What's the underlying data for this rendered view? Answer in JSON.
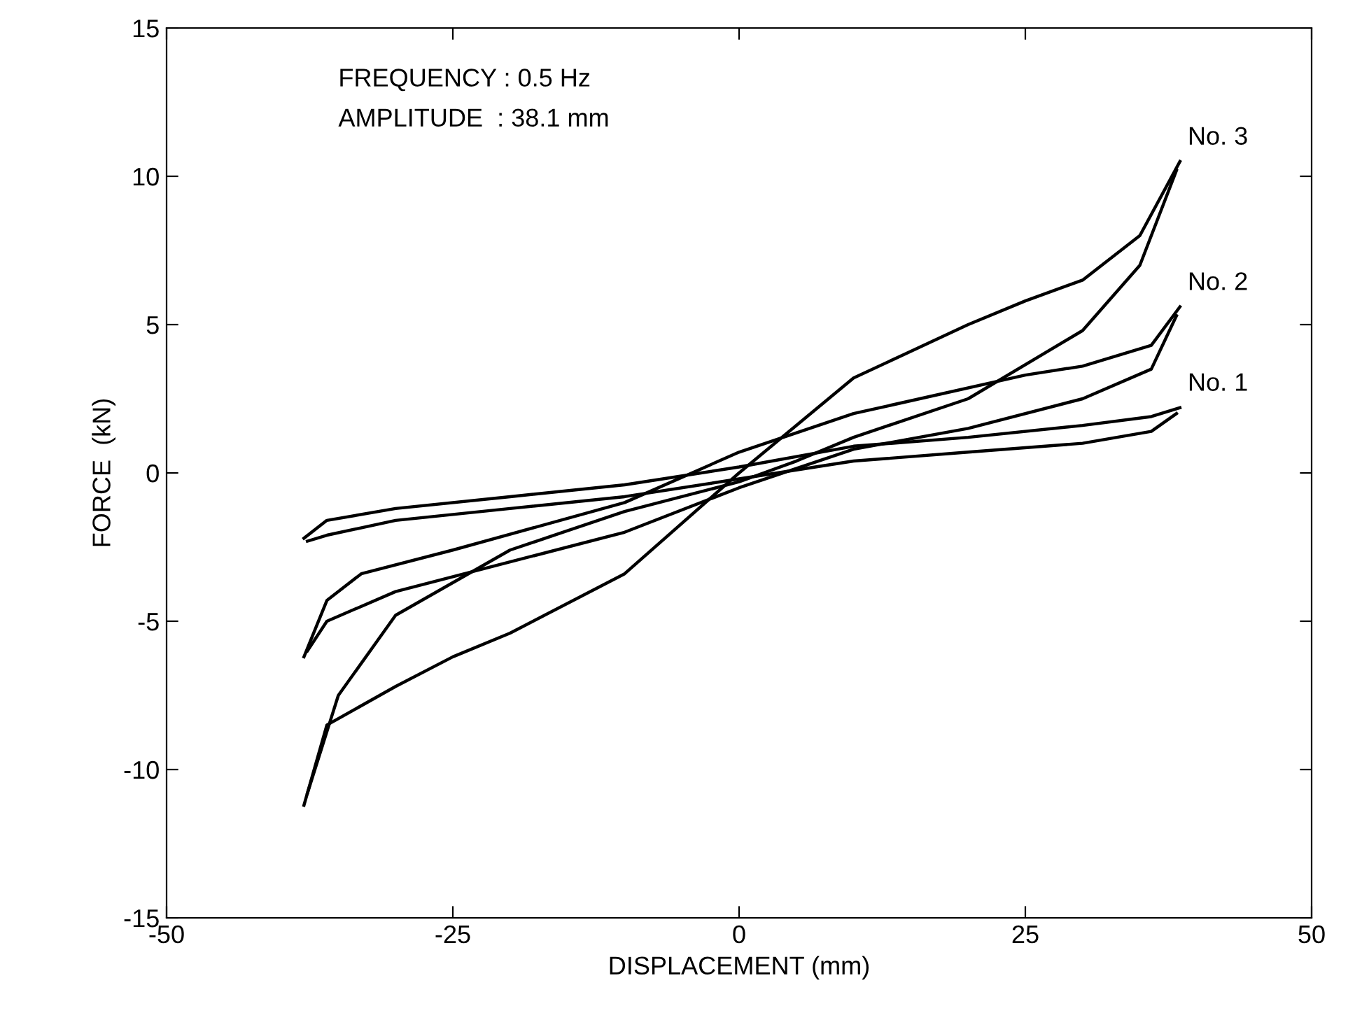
{
  "chart_data": {
    "type": "line",
    "xlabel": "DISPLACEMENT (mm)",
    "ylabel": "FORCE  (kN)",
    "annotations": [
      "FREQUENCY : 0.5 Hz",
      "AMPLITUDE  : 38.1 mm"
    ],
    "xlim": [
      -50,
      50
    ],
    "xticks": [
      -50,
      -25,
      0,
      25,
      50
    ],
    "ylim": [
      -15,
      15
    ],
    "yticks": [
      -15,
      -10,
      -5,
      0,
      5,
      10,
      15
    ],
    "grid": false,
    "legend": false,
    "marker": "none",
    "line_style": "solid",
    "series": [
      {
        "name": "No. 1",
        "color": "#000000",
        "x": [
          -38,
          -36,
          -30,
          -20,
          -10,
          0,
          10,
          20,
          30,
          36,
          38.5
        ],
        "values": [
          -2.2,
          -1.6,
          -1.2,
          -0.8,
          -0.4,
          0.2,
          0.9,
          1.2,
          1.6,
          1.9,
          2.2
        ]
      },
      {
        "color": "#000000",
        "x": [
          -37.7,
          -36,
          -30,
          -20,
          -10,
          0,
          10,
          20,
          30,
          36,
          38.2
        ],
        "values": [
          -2.3,
          -2.1,
          -1.6,
          -1.2,
          -0.8,
          -0.2,
          0.4,
          0.7,
          1.0,
          1.4,
          2.0
        ]
      },
      {
        "name": "No. 2",
        "color": "#000000",
        "x": [
          -38,
          -36,
          -33,
          -25,
          -10,
          0,
          10,
          25,
          30,
          36,
          38.5
        ],
        "values": [
          -6.2,
          -4.3,
          -3.4,
          -2.6,
          -1.0,
          0.7,
          2.0,
          3.3,
          3.6,
          4.3,
          5.6
        ]
      },
      {
        "color": "#000000",
        "x": [
          -37.7,
          -36,
          -30,
          -20,
          -10,
          0,
          10,
          20,
          30,
          36,
          38.2
        ],
        "values": [
          -6.0,
          -5.0,
          -4.0,
          -3.0,
          -2.0,
          -0.5,
          0.8,
          1.5,
          2.5,
          3.5,
          5.3
        ]
      },
      {
        "name": "No. 3",
        "color": "#000000",
        "x": [
          -38,
          -36,
          -30,
          -25,
          -20,
          -10,
          0,
          10,
          20,
          25,
          30,
          35,
          38.5
        ],
        "values": [
          -11.2,
          -8.5,
          -7.2,
          -6.2,
          -5.4,
          -3.4,
          0.0,
          3.2,
          5.0,
          5.8,
          6.5,
          8.0,
          10.5
        ]
      },
      {
        "color": "#000000",
        "x": [
          -37.7,
          -35,
          -30,
          -20,
          -10,
          0,
          5,
          10,
          20,
          30,
          35,
          38.2
        ],
        "values": [
          -10.8,
          -7.5,
          -4.8,
          -2.6,
          -1.3,
          -0.3,
          0.4,
          1.2,
          2.5,
          4.8,
          7.0,
          10.2
        ]
      }
    ]
  }
}
